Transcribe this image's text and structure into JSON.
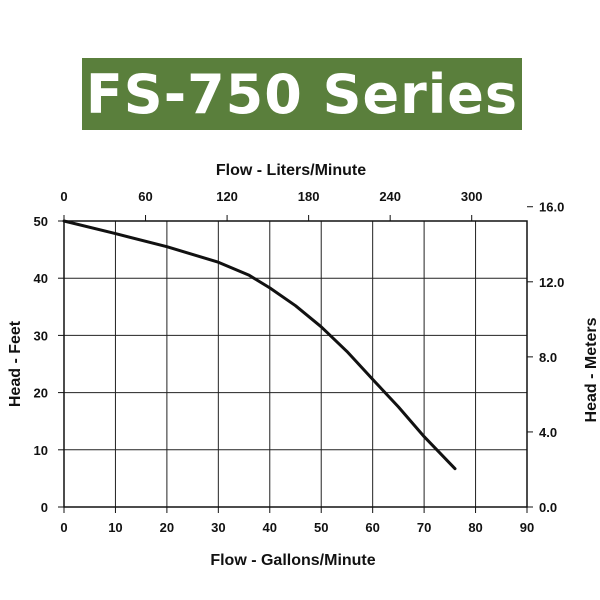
{
  "banner": {
    "title": "FS-750 Series",
    "background": "#5a7f3c"
  },
  "chart_data": {
    "type": "line",
    "title": "FS-750 Series",
    "grid": true,
    "legend": "none",
    "x": {
      "label": "Flow - Gallons/Minute",
      "range": [
        0,
        90
      ],
      "ticks": [
        0,
        10,
        20,
        30,
        40,
        50,
        60,
        70,
        80,
        90
      ],
      "tick_labels": [
        "0",
        "10",
        "20",
        "30",
        "40",
        "50",
        "60",
        "70",
        "80",
        "90"
      ]
    },
    "y": {
      "label": "Head - Feet",
      "range": [
        0,
        50
      ],
      "ticks": [
        0,
        10,
        20,
        30,
        40,
        50
      ],
      "tick_labels": [
        "0",
        "10",
        "20",
        "30",
        "40",
        "50"
      ]
    },
    "x2": {
      "label": "Flow - Liters/Minute",
      "ticks": [
        0,
        60,
        120,
        180,
        240,
        300
      ],
      "tick_labels": [
        "0",
        "60",
        "120",
        "180",
        "240",
        "300"
      ],
      "gpm_per_unit": 0.264172
    },
    "y2": {
      "label": "Head - Meters",
      "ticks": [
        0,
        4,
        8,
        12,
        16
      ],
      "tick_labels": [
        "0.0",
        "4.0",
        "8.0",
        "12.0",
        "16.0"
      ],
      "feet_per_unit": 3.28084
    },
    "series": [
      {
        "color": "#111111",
        "points": [
          [
            0,
            50
          ],
          [
            10,
            47.8
          ],
          [
            20,
            45.5
          ],
          [
            30,
            42.8
          ],
          [
            36,
            40.5
          ],
          [
            40,
            38.3
          ],
          [
            45,
            35.2
          ],
          [
            50,
            31.5
          ],
          [
            55,
            27.2
          ],
          [
            60,
            22.3
          ],
          [
            65,
            17.5
          ],
          [
            70,
            12.3
          ],
          [
            76,
            6.7
          ]
        ]
      }
    ]
  }
}
